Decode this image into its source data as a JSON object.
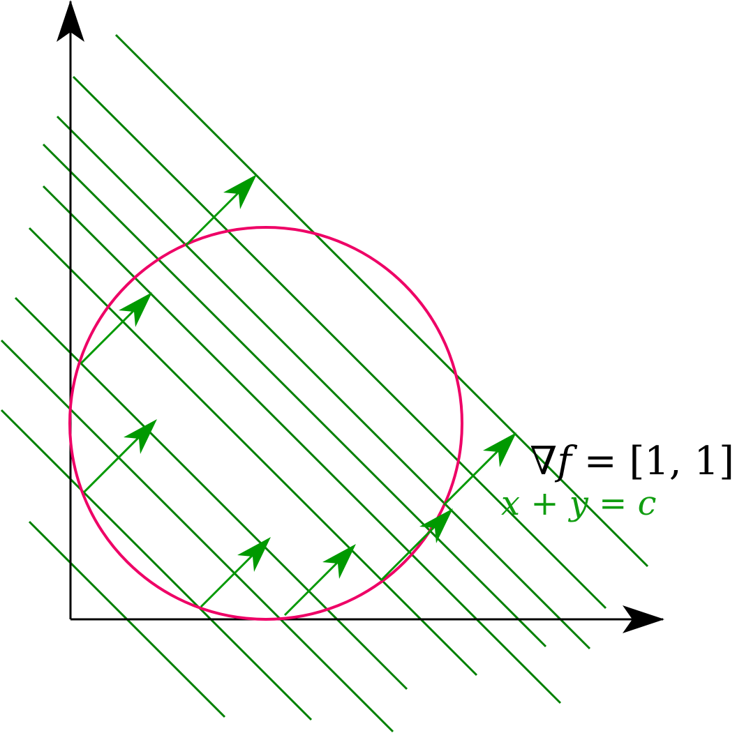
{
  "diagram": {
    "gradient_label": {
      "nabla": "∇",
      "f": "f",
      "rest": " = [1, 1]"
    },
    "level_set_label": "x + y = c",
    "colors": {
      "axis": "#000000",
      "level_lines": "#008000",
      "arrows": "#009900",
      "circle": "#ee0066",
      "level_label": "#109d10"
    }
  }
}
